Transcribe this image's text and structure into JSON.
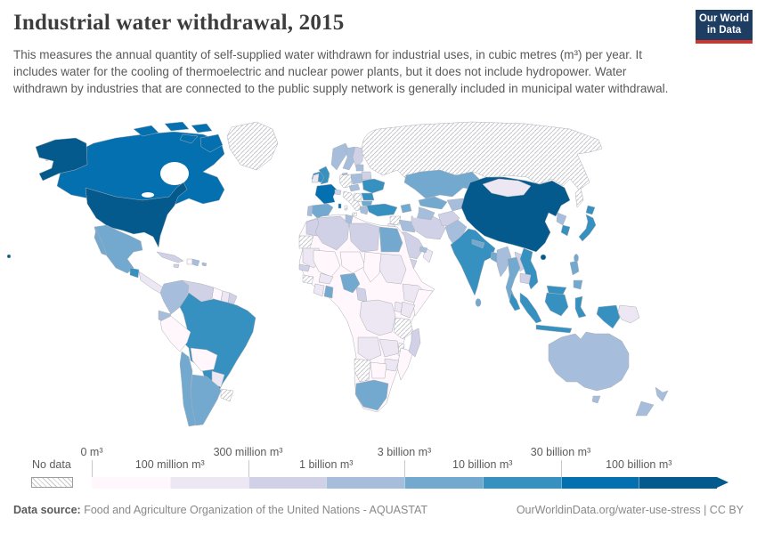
{
  "header": {
    "title": "Industrial water withdrawal, 2015",
    "logo_line1": "Our World",
    "logo_line2": "in Data"
  },
  "subtitle": "This measures the annual quantity of self-supplied water withdrawn for industrial uses, in cubic metres (m³) per year. It includes water for the cooling of thermoelectric and nuclear power plants, but it does not include hydropower. Water withdrawn by industries that are connected to the public supply network is generally included in municipal water withdrawal.",
  "legend": {
    "no_data_label": "No data",
    "boundary_labels": [
      "0 m³",
      "100 million m³",
      "300 million m³",
      "1 billion m³",
      "3 billion m³",
      "10 billion m³",
      "30 billion m³",
      "100 billion m³"
    ],
    "colors": [
      "#fff7fb",
      "#ece7f2",
      "#d0d1e6",
      "#a6bddb",
      "#74a9cf",
      "#3690c0",
      "#0570b0",
      "#045a8d"
    ]
  },
  "footer": {
    "datasource_label": "Data source:",
    "datasource": "Food and Agriculture Organization of the United Nations - AQUASTAT",
    "link": "OurWorldinData.org/water-use-stress",
    "separator": " | ",
    "license": "CC BY"
  },
  "chart_data": {
    "type": "heatmap",
    "subtype": "world-choropleth",
    "title": "Industrial water withdrawal, 2015",
    "unit": "cubic metres (m³) per year",
    "legend_position": "bottom",
    "bins": [
      "0–100 million m³",
      "100–300 million m³",
      "300 million–1 billion m³",
      "1–3 billion m³",
      "3–10 billion m³",
      "10–30 billion m³",
      "30–100 billion m³",
      "100+ billion m³"
    ],
    "no_data": "hatched",
    "countries": {
      "united-states": {
        "name": "United States",
        "bin": 7
      },
      "canada": {
        "name": "Canada",
        "bin": 6
      },
      "greenland": {
        "name": "Greenland",
        "bin": null
      },
      "mexico": {
        "name": "Mexico",
        "bin": 4
      },
      "guatemala": {
        "name": "Guatemala",
        "bin": 5
      },
      "central-america": {
        "name": "Honduras/Nicaragua/Costa Rica",
        "bin": 1
      },
      "panama": {
        "name": "Panama",
        "bin": 2
      },
      "cuba": {
        "name": "Cuba",
        "bin": 2
      },
      "haiti": {
        "name": "Haiti",
        "bin": 0
      },
      "dominican-republic": {
        "name": "Dominican Republic",
        "bin": 3
      },
      "jamaica": {
        "name": "Jamaica",
        "bin": 2
      },
      "puerto-rico": {
        "name": "Puerto Rico",
        "bin": 3
      },
      "colombia": {
        "name": "Colombia",
        "bin": 3
      },
      "venezuela": {
        "name": "Venezuela",
        "bin": 2
      },
      "guyana": {
        "name": "Guyana",
        "bin": 0
      },
      "suriname": {
        "name": "Suriname",
        "bin": 1
      },
      "french-guiana": {
        "name": "French Guiana",
        "bin": 2
      },
      "ecuador": {
        "name": "Ecuador",
        "bin": 3
      },
      "peru": {
        "name": "Peru",
        "bin": 0
      },
      "brazil": {
        "name": "Brazil",
        "bin": 5
      },
      "bolivia": {
        "name": "Bolivia",
        "bin": 0
      },
      "paraguay": {
        "name": "Paraguay",
        "bin": 1
      },
      "uruguay": {
        "name": "Uruguay",
        "bin": null
      },
      "chile": {
        "name": "Chile",
        "bin": 4
      },
      "argentina": {
        "name": "Argentina",
        "bin": 4
      },
      "iceland": {
        "name": "Iceland",
        "bin": 5
      },
      "united-kingdom": {
        "name": "United Kingdom",
        "bin": 5
      },
      "ireland": {
        "name": "Ireland",
        "bin": 1
      },
      "norway": {
        "name": "Norway",
        "bin": 3
      },
      "sweden": {
        "name": "Sweden",
        "bin": 3
      },
      "finland": {
        "name": "Finland",
        "bin": 2
      },
      "denmark": {
        "name": "Denmark",
        "bin": 3
      },
      "france": {
        "name": "France",
        "bin": 6
      },
      "spain": {
        "name": "Spain",
        "bin": 4
      },
      "portugal": {
        "name": "Portugal",
        "bin": 3
      },
      "germany": {
        "name": "Germany",
        "bin": null
      },
      "italy": {
        "name": "Italy",
        "bin": null
      },
      "switzerland": {
        "name": "Switzerland",
        "bin": 2
      },
      "poland": {
        "name": "Poland",
        "bin": 3
      },
      "czechia-austria": {
        "name": "Czechia/Austria",
        "bin": 3
      },
      "belarus": {
        "name": "Belarus",
        "bin": 2
      },
      "baltics": {
        "name": "Baltic states",
        "bin": 3
      },
      "ukraine": {
        "name": "Ukraine",
        "bin": 5
      },
      "romania": {
        "name": "Romania",
        "bin": 5
      },
      "serbia": {
        "name": "Serbia",
        "bin": null
      },
      "bulgaria": {
        "name": "Bulgaria",
        "bin": 4
      },
      "greece": {
        "name": "Greece",
        "bin": 3
      },
      "turkey": {
        "name": "Turkey",
        "bin": 5
      },
      "syria": {
        "name": "Syria",
        "bin": null
      },
      "iraq": {
        "name": "Iraq",
        "bin": 3
      },
      "iran": {
        "name": "Iran",
        "bin": 2
      },
      "jordan-israel": {
        "name": "Jordan/Israel",
        "bin": 1
      },
      "saudi-arabia": {
        "name": "Saudi Arabia",
        "bin": 2
      },
      "yemen": {
        "name": "Yemen",
        "bin": 2
      },
      "oman": {
        "name": "Oman",
        "bin": 1
      },
      "uae": {
        "name": "United Arab Emirates",
        "bin": 3
      },
      "russia": {
        "name": "Russia",
        "bin": null
      },
      "kazakhstan": {
        "name": "Kazakhstan",
        "bin": 4
      },
      "uzbekistan": {
        "name": "Uzbekistan",
        "bin": 4
      },
      "turkmenistan": {
        "name": "Turkmenistan",
        "bin": 3
      },
      "caucasus": {
        "name": "Caucasus states",
        "bin": 4
      },
      "kyrgyzstan-tajikistan": {
        "name": "Kyrgyzstan/Tajikistan",
        "bin": 3
      },
      "afghanistan": {
        "name": "Afghanistan",
        "bin": 2
      },
      "pakistan": {
        "name": "Pakistan",
        "bin": 3
      },
      "india": {
        "name": "India",
        "bin": 5
      },
      "nepal": {
        "name": "Nepal",
        "bin": 4
      },
      "bangladesh": {
        "name": "Bangladesh",
        "bin": 4
      },
      "sri-lanka": {
        "name": "Sri Lanka",
        "bin": 4
      },
      "china": {
        "name": "China",
        "bin": 7
      },
      "mongolia": {
        "name": "Mongolia",
        "bin": 1
      },
      "north-korea": {
        "name": "North Korea",
        "bin": 3
      },
      "south-korea": {
        "name": "South Korea",
        "bin": 5
      },
      "japan": {
        "name": "Japan",
        "bin": 5
      },
      "taiwan": {
        "name": "Taiwan",
        "bin": 4
      },
      "myanmar": {
        "name": "Myanmar",
        "bin": 3
      },
      "thailand": {
        "name": "Thailand",
        "bin": 4
      },
      "laos": {
        "name": "Laos",
        "bin": 2
      },
      "cambodia": {
        "name": "Cambodia",
        "bin": 2
      },
      "vietnam": {
        "name": "Vietnam",
        "bin": 5
      },
      "malaysia": {
        "name": "Malaysia",
        "bin": 5
      },
      "indonesia": {
        "name": "Indonesia",
        "bin": 5
      },
      "philippines": {
        "name": "Philippines",
        "bin": 4
      },
      "papua-new-guinea": {
        "name": "Papua New Guinea",
        "bin": 1
      },
      "australia": {
        "name": "Australia",
        "bin": 3
      },
      "new-zealand": {
        "name": "New Zealand",
        "bin": 3
      },
      "africa-other": {
        "name": "Other African countries",
        "bin": 0
      },
      "morocco": {
        "name": "Morocco",
        "bin": 2
      },
      "western-sahara": {
        "name": "Western Sahara",
        "bin": null
      },
      "algeria": {
        "name": "Algeria",
        "bin": 2
      },
      "tunisia": {
        "name": "Tunisia",
        "bin": 3
      },
      "libya": {
        "name": "Libya",
        "bin": 2
      },
      "egypt": {
        "name": "Egypt",
        "bin": 4
      },
      "mauritania": {
        "name": "Mauritania",
        "bin": 1
      },
      "mali": {
        "name": "Mali",
        "bin": 0
      },
      "niger": {
        "name": "Niger",
        "bin": 0
      },
      "chad": {
        "name": "Chad",
        "bin": 0
      },
      "sudan": {
        "name": "Sudan",
        "bin": 1
      },
      "senegal": {
        "name": "Senegal",
        "bin": 2
      },
      "guinea": {
        "name": "Guinea",
        "bin": null
      },
      "cote-divoire": {
        "name": "Côte d'Ivoire",
        "bin": 1
      },
      "ghana": {
        "name": "Ghana",
        "bin": 4
      },
      "burkina-faso": {
        "name": "Burkina Faso",
        "bin": 1
      },
      "nigeria": {
        "name": "Nigeria",
        "bin": 4
      },
      "cameroon": {
        "name": "Cameroon",
        "bin": 2
      },
      "ethiopia": {
        "name": "Ethiopia",
        "bin": 1
      },
      "somalia": {
        "name": "Somalia",
        "bin": 0
      },
      "kenya": {
        "name": "Kenya",
        "bin": 1
      },
      "uganda": {
        "name": "Uganda",
        "bin": 1
      },
      "drc": {
        "name": "Democratic Republic of Congo",
        "bin": 1
      },
      "tanzania": {
        "name": "Tanzania",
        "bin": null
      },
      "angola": {
        "name": "Angola",
        "bin": 1
      },
      "zambia": {
        "name": "Zambia",
        "bin": 1
      },
      "malawi": {
        "name": "Malawi",
        "bin": null
      },
      "mozambique": {
        "name": "Mozambique",
        "bin": 0
      },
      "zimbabwe": {
        "name": "Zimbabwe",
        "bin": 1
      },
      "botswana": {
        "name": "Botswana",
        "bin": 0
      },
      "namibia": {
        "name": "Namibia",
        "bin": null
      },
      "south-africa": {
        "name": "South Africa",
        "bin": 4
      },
      "madagascar": {
        "name": "Madagascar",
        "bin": 2
      }
    }
  }
}
